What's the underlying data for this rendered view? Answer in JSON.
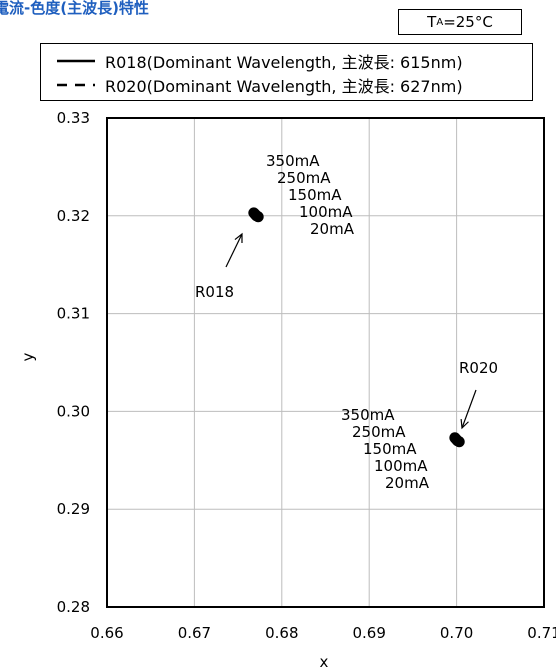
{
  "page": {
    "title": "電流-色度(主波長)特性"
  },
  "conditions": {
    "ambient_prefix": "T",
    "ambient_sub": "A",
    "ambient_value": "=25°C"
  },
  "chart_data": {
    "type": "scatter",
    "xlabel": "x",
    "ylabel": "y",
    "xlim": [
      0.66,
      0.71
    ],
    "ylim": [
      0.28,
      0.33
    ],
    "x_ticks": [
      "0.66",
      "0.67",
      "0.68",
      "0.69",
      "0.70",
      "0.71"
    ],
    "y_ticks": [
      "0.28",
      "0.29",
      "0.30",
      "0.31",
      "0.32",
      "0.33"
    ],
    "grid": true,
    "legend_position": "top",
    "series": [
      {
        "name": "R018(Dominant Wavelength, 主波長: 615nm)",
        "line_style": "solid",
        "label": "R018",
        "currents": [
          "350mA",
          "250mA",
          "150mA",
          "100mA",
          "20mA"
        ],
        "x": [
          0.6768,
          0.6769,
          0.677,
          0.6771,
          0.6773
        ],
        "y": [
          0.3203,
          0.3202,
          0.3201,
          0.32,
          0.3199
        ]
      },
      {
        "name": "R020(Dominant Wavelength, 主波長: 627nm)",
        "line_style": "dashed",
        "label": "R020",
        "currents": [
          "350mA",
          "250mA",
          "150mA",
          "100mA",
          "20mA"
        ],
        "x": [
          0.6998,
          0.6999,
          0.7,
          0.7001,
          0.7003
        ],
        "y": [
          0.2973,
          0.2972,
          0.2971,
          0.297,
          0.2969
        ]
      }
    ]
  },
  "colors": {
    "title": "#1f5fbf",
    "data": "#000000",
    "grid": "#bdbdbd"
  }
}
